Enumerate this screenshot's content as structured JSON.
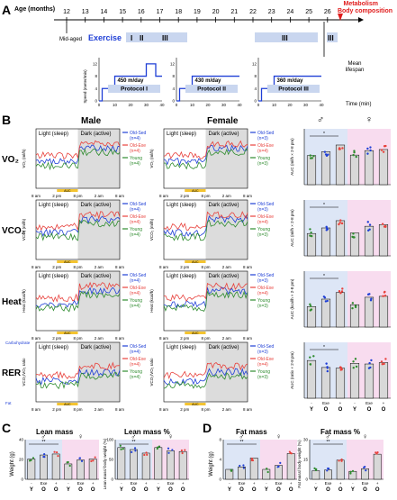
{
  "panels": {
    "a": "A",
    "b": "B",
    "c": "C",
    "d": "D"
  },
  "timeline": {
    "axis_label": "Age (months)",
    "ticks": [
      "12",
      "13",
      "14",
      "15",
      "16",
      "17",
      "18",
      "19",
      "20",
      "21",
      "22",
      "23",
      "24",
      "25",
      "26"
    ],
    "mid_aged": "Mid-aged",
    "mean_lifespan": "Mean lifespan",
    "metab_line1": "Metabolism",
    "metab_line2": "Body composition",
    "exercise": "Exercise",
    "phases": [
      "I",
      "II",
      "III",
      "III",
      "III"
    ]
  },
  "protocols": {
    "y_axis_label": "Speed (meter/min)",
    "y_ticks": [
      "0",
      "4",
      "8",
      "12"
    ],
    "x_ticks": [
      "0",
      "10",
      "20",
      "30",
      "40"
    ],
    "time_label": "Time (min)",
    "items": [
      {
        "dist": "450 m/day",
        "name": "Protocol I"
      },
      {
        "dist": "430 m/day",
        "name": "Protocol II"
      },
      {
        "dist": "360 m/day",
        "name": "Protocol III"
      }
    ]
  },
  "b_section": {
    "male": "Male",
    "female": "Female",
    "light": "Light (sleep)",
    "dark": "Dark (active)",
    "auc": "AUC",
    "x_ticks": [
      "8 am",
      "2 pm",
      "8 pm",
      "2 am",
      "8 am"
    ],
    "rows": [
      {
        "label": "VO₂",
        "ylabel": "VO₂ (ml/h)",
        "auc_label": "AUC (ml/h × 2-8 pm)"
      },
      {
        "label": "VCO₂",
        "ylabel": "VCO₂ (ml/h)",
        "auc_label": "AUC (ml/h × 2-8 pm)"
      },
      {
        "label": "Heat",
        "ylabel": "Heat (kcal/h)",
        "auc_label": "AUC (kcal/h × 2-8 pm)"
      },
      {
        "label": "RER",
        "ylabel": "VCO₂/VO₂ ratio",
        "auc_label": "AUC (ratio × 2-8 pm)"
      }
    ],
    "rer_top": "Carbohydrate",
    "rer_bottom": "Fat",
    "legend_male": [
      {
        "name": "Old-Sed",
        "n": "(n=4)",
        "color": "#1f3fd6"
      },
      {
        "name": "Old-Exe",
        "n": "(n=4)",
        "color": "#e8413c"
      },
      {
        "name": "Young",
        "n": "(n=4)",
        "color": "#2e8b2e"
      }
    ],
    "legend_female": [
      {
        "name": "Old-Sed",
        "n": "(n=3)",
        "color": "#1f3fd6"
      },
      {
        "name": "Old-Exe",
        "n": "(n=4)",
        "color": "#e8413c"
      },
      {
        "name": "Young",
        "n": "(n=3)",
        "color": "#2e8b2e"
      }
    ],
    "sex_male": "♂",
    "sex_female": "♀",
    "group_labels": [
      "Y",
      "O",
      "O"
    ],
    "exe_labels": [
      "-",
      "Exe",
      "+"
    ]
  },
  "c_section": {
    "lean_title": "Lean mass",
    "lean_pct_title": "Lean mass %",
    "lean_y": "Weight (g)",
    "lean_pct_y": "Lean mass/ body weight (%)"
  },
  "d_section": {
    "fat_title": "Fat mass",
    "fat_pct_title": "Fat mass %",
    "fat_y": "Weight (g)",
    "fat_pct_y": "Fat mass/ body weight (%)"
  },
  "chart_data": [
    {
      "type": "bar",
      "title": "VO₂ AUC",
      "categories": [
        "Y ♂",
        "O-Sed ♂",
        "O-Exe ♂",
        "Y ♀",
        "O-Sed ♀",
        "O-Exe ♀"
      ],
      "values": [
        5.2,
        5.9,
        7.1,
        5.3,
        6.1,
        6.3
      ],
      "colors": [
        "#2e8b2e",
        "#1f3fd6",
        "#e8413c",
        "#2e8b2e",
        "#1f3fd6",
        "#e8413c"
      ],
      "ylim": [
        0,
        10
      ]
    },
    {
      "type": "bar",
      "title": "VCO₂ AUC",
      "categories": [
        "Y ♂",
        "O-Sed ♂",
        "O-Exe ♂",
        "Y ♀",
        "O-Sed ♀",
        "O-Exe ♀"
      ],
      "values": [
        4.0,
        5.0,
        6.3,
        4.1,
        5.3,
        5.6
      ],
      "colors": [
        "#2e8b2e",
        "#1f3fd6",
        "#e8413c",
        "#2e8b2e",
        "#1f3fd6",
        "#e8413c"
      ],
      "ylim": [
        0,
        10
      ]
    },
    {
      "type": "bar",
      "title": "Heat AUC",
      "categories": [
        "Y ♂",
        "O-Sed ♂",
        "O-Exe ♂",
        "Y ♀",
        "O-Sed ♀",
        "O-Exe ♀"
      ],
      "values": [
        2.2,
        3.0,
        3.7,
        2.4,
        3.2,
        3.3
      ],
      "colors": [
        "#2e8b2e",
        "#1f3fd6",
        "#e8413c",
        "#2e8b2e",
        "#1f3fd6",
        "#e8413c"
      ],
      "ylim": [
        0,
        6
      ]
    },
    {
      "type": "bar",
      "title": "RER AUC",
      "categories": [
        "Y ♂",
        "O-Sed ♂",
        "O-Exe ♂",
        "Y ♀",
        "O-Sed ♀",
        "O-Exe ♀"
      ],
      "values": [
        5.4,
        4.4,
        4.3,
        5.0,
        4.9,
        5.1
      ],
      "colors": [
        "#2e8b2e",
        "#1f3fd6",
        "#e8413c",
        "#2e8b2e",
        "#1f3fd6",
        "#e8413c"
      ],
      "ylim": [
        0,
        8
      ]
    },
    {
      "type": "bar",
      "title": "Lean mass",
      "categories": [
        "Y ♂",
        "O-Sed ♂",
        "O-Exe ♂",
        "Y ♀",
        "O-Sed ♀",
        "O-Exe ♀"
      ],
      "values": [
        20.5,
        24.5,
        25.5,
        15.5,
        19.5,
        20.5
      ],
      "colors": [
        "#2e8b2e",
        "#1f3fd6",
        "#e8413c",
        "#2e8b2e",
        "#1f3fd6",
        "#e8413c"
      ],
      "ylim": [
        0,
        40
      ]
    },
    {
      "type": "bar",
      "title": "Lean mass %",
      "categories": [
        "Y ♂",
        "O-Sed ♂",
        "O-Exe ♂",
        "Y ♀",
        "O-Sed ♀",
        "O-Exe ♀"
      ],
      "values": [
        80,
        75,
        66,
        80,
        72,
        70
      ],
      "colors": [
        "#2e8b2e",
        "#1f3fd6",
        "#e8413c",
        "#2e8b2e",
        "#1f3fd6",
        "#e8413c"
      ],
      "ylim": [
        0,
        100
      ]
    },
    {
      "type": "bar",
      "title": "Fat mass",
      "categories": [
        "Y ♂",
        "O-Sed ♂",
        "O-Exe ♂",
        "Y ♀",
        "O-Sed ♀",
        "O-Exe ♀"
      ],
      "values": [
        2.0,
        2.5,
        4.3,
        2.0,
        2.8,
        5.2
      ],
      "colors": [
        "#2e8b2e",
        "#1f3fd6",
        "#e8413c",
        "#2e8b2e",
        "#1f3fd6",
        "#e8413c"
      ],
      "ylim": [
        0,
        8
      ]
    },
    {
      "type": "bar",
      "title": "Fat mass %",
      "categories": [
        "Y ♂",
        "O-Sed ♂",
        "O-Exe ♂",
        "Y ♀",
        "O-Sed ♀",
        "O-Exe ♀"
      ],
      "values": [
        6.5,
        7.0,
        14.5,
        6.0,
        8.0,
        19.0
      ],
      "colors": [
        "#2e8b2e",
        "#1f3fd6",
        "#e8413c",
        "#2e8b2e",
        "#1f3fd6",
        "#e8413c"
      ],
      "ylim": [
        0,
        30
      ]
    }
  ]
}
